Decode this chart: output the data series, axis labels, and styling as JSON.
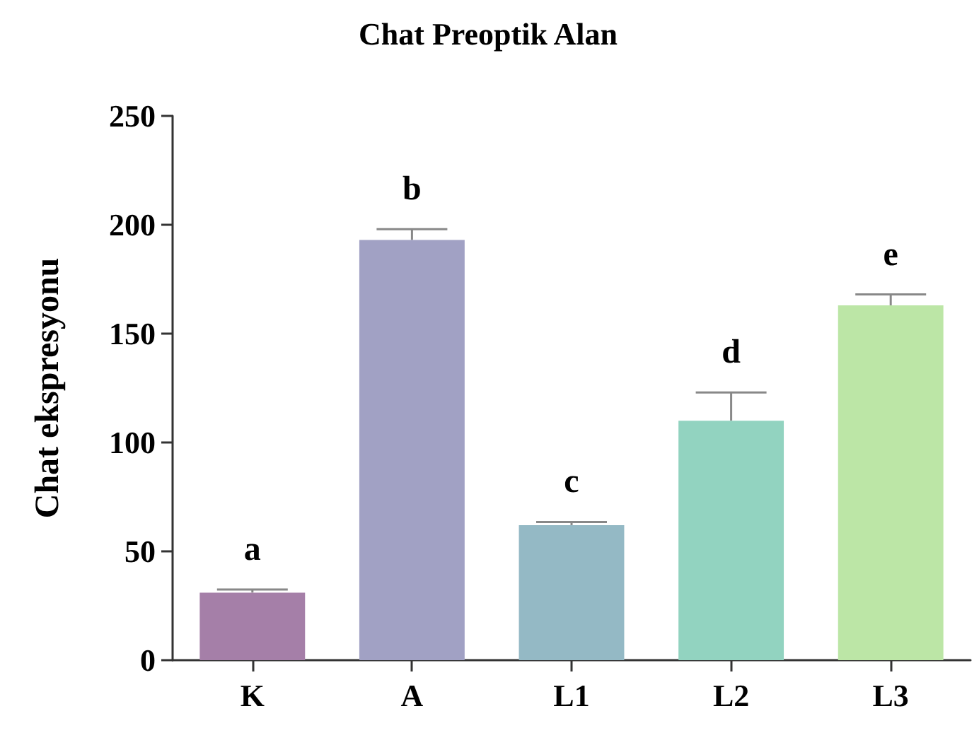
{
  "chart_data": {
    "type": "bar",
    "title": "Chat Preoptik Alan",
    "ylabel": "Chat ekspresyonu",
    "categories": [
      "K",
      "A",
      "L1",
      "L2",
      "L3"
    ],
    "values": [
      31,
      193,
      62,
      110,
      163
    ],
    "errors": [
      1.5,
      5,
      1.5,
      13,
      5
    ],
    "colors": [
      "#a57fa8",
      "#a1a1c4",
      "#94b9c5",
      "#92d3c0",
      "#bce6a6"
    ],
    "ylim": [
      0,
      250
    ],
    "yticks": [
      0,
      50,
      100,
      150,
      200,
      250
    ],
    "grid": false,
    "annotations": [
      "a",
      "b",
      "c",
      "d",
      "e"
    ]
  }
}
